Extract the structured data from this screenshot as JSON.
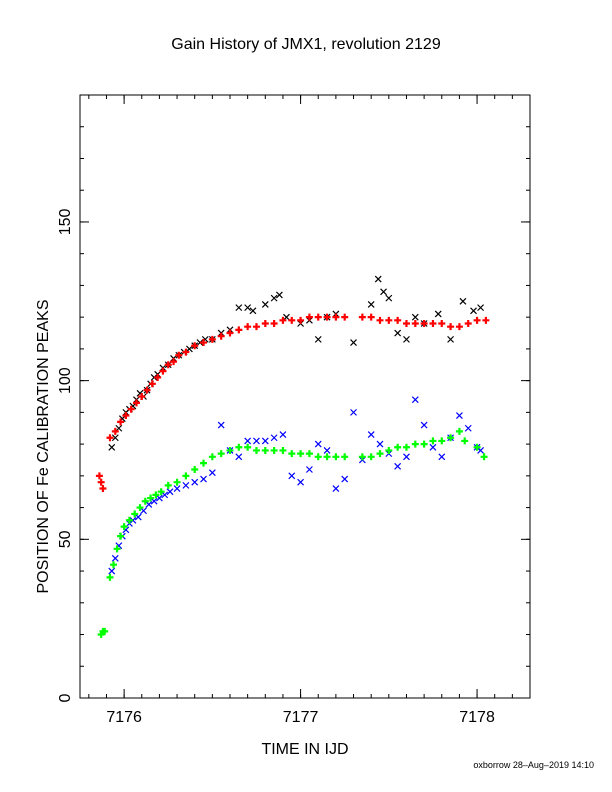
{
  "chart_data": {
    "type": "scatter",
    "title": "Gain History of JMX1, revolution 2129",
    "xlabel": "TIME IN IJD",
    "ylabel": "POSITION OF Fe CALIBRATION PEAKS",
    "xlim": [
      7175.75,
      7178.3
    ],
    "ylim": [
      0,
      190
    ],
    "xticks": [
      7176,
      7177,
      7178
    ],
    "yticks": [
      0,
      50,
      100,
      150
    ],
    "grid": false,
    "legend": "none",
    "series": [
      {
        "color": "#000000",
        "marker": "x",
        "points": [
          [
            7175.93,
            79
          ],
          [
            7175.95,
            82
          ],
          [
            7175.97,
            85
          ],
          [
            7175.99,
            88
          ],
          [
            7176.01,
            90
          ],
          [
            7176.03,
            91
          ],
          [
            7176.05,
            92
          ],
          [
            7176.07,
            94
          ],
          [
            7176.09,
            96
          ],
          [
            7176.11,
            95
          ],
          [
            7176.13,
            97
          ],
          [
            7176.15,
            99
          ],
          [
            7176.17,
            101
          ],
          [
            7176.19,
            102
          ],
          [
            7176.22,
            104
          ],
          [
            7176.25,
            105
          ],
          [
            7176.28,
            107
          ],
          [
            7176.31,
            108
          ],
          [
            7176.34,
            109
          ],
          [
            7176.37,
            110
          ],
          [
            7176.4,
            111
          ],
          [
            7176.43,
            112
          ],
          [
            7176.46,
            113
          ],
          [
            7176.5,
            113
          ],
          [
            7176.55,
            115
          ],
          [
            7176.6,
            116
          ],
          [
            7176.65,
            123
          ],
          [
            7176.7,
            123
          ],
          [
            7176.73,
            122
          ],
          [
            7176.8,
            124
          ],
          [
            7176.85,
            126
          ],
          [
            7176.88,
            127
          ],
          [
            7176.92,
            120
          ],
          [
            7177.0,
            118
          ],
          [
            7177.05,
            119
          ],
          [
            7177.1,
            113
          ],
          [
            7177.15,
            120
          ],
          [
            7177.2,
            121
          ],
          [
            7177.3,
            112
          ],
          [
            7177.4,
            124
          ],
          [
            7177.44,
            132
          ],
          [
            7177.47,
            128
          ],
          [
            7177.5,
            126
          ],
          [
            7177.55,
            115
          ],
          [
            7177.6,
            113
          ],
          [
            7177.65,
            120
          ],
          [
            7177.7,
            118
          ],
          [
            7177.78,
            121
          ],
          [
            7177.85,
            113
          ],
          [
            7177.92,
            125
          ],
          [
            7177.98,
            122
          ],
          [
            7178.02,
            123
          ]
        ]
      },
      {
        "color": "#ff0000",
        "marker": "+",
        "points": [
          [
            7175.86,
            70
          ],
          [
            7175.87,
            68
          ],
          [
            7175.88,
            66
          ],
          [
            7175.92,
            82
          ],
          [
            7175.95,
            84
          ],
          [
            7175.98,
            87
          ],
          [
            7176.01,
            89
          ],
          [
            7176.04,
            91
          ],
          [
            7176.07,
            93
          ],
          [
            7176.1,
            95
          ],
          [
            7176.13,
            97
          ],
          [
            7176.16,
            99
          ],
          [
            7176.19,
            101
          ],
          [
            7176.22,
            103
          ],
          [
            7176.25,
            105
          ],
          [
            7176.28,
            106
          ],
          [
            7176.31,
            108
          ],
          [
            7176.35,
            109
          ],
          [
            7176.4,
            111
          ],
          [
            7176.45,
            112
          ],
          [
            7176.5,
            113
          ],
          [
            7176.55,
            114
          ],
          [
            7176.6,
            115
          ],
          [
            7176.65,
            116
          ],
          [
            7176.7,
            117
          ],
          [
            7176.75,
            117
          ],
          [
            7176.8,
            118
          ],
          [
            7176.85,
            118
          ],
          [
            7176.9,
            119
          ],
          [
            7176.95,
            119
          ],
          [
            7177.0,
            119
          ],
          [
            7177.05,
            120
          ],
          [
            7177.1,
            120
          ],
          [
            7177.15,
            120
          ],
          [
            7177.2,
            120
          ],
          [
            7177.25,
            120
          ],
          [
            7177.35,
            120
          ],
          [
            7177.4,
            120
          ],
          [
            7177.45,
            119
          ],
          [
            7177.5,
            119
          ],
          [
            7177.55,
            119
          ],
          [
            7177.6,
            118
          ],
          [
            7177.65,
            118
          ],
          [
            7177.7,
            118
          ],
          [
            7177.75,
            118
          ],
          [
            7177.8,
            118
          ],
          [
            7177.85,
            117
          ],
          [
            7177.9,
            117
          ],
          [
            7177.95,
            118
          ],
          [
            7178.0,
            119
          ],
          [
            7178.05,
            119
          ]
        ]
      },
      {
        "color": "#0000ff",
        "marker": "x",
        "points": [
          [
            7175.93,
            40
          ],
          [
            7175.95,
            44
          ],
          [
            7175.97,
            48
          ],
          [
            7175.99,
            51
          ],
          [
            7176.01,
            53
          ],
          [
            7176.03,
            55
          ],
          [
            7176.05,
            56
          ],
          [
            7176.08,
            57
          ],
          [
            7176.11,
            59
          ],
          [
            7176.14,
            61
          ],
          [
            7176.17,
            62
          ],
          [
            7176.2,
            63
          ],
          [
            7176.23,
            64
          ],
          [
            7176.26,
            65
          ],
          [
            7176.3,
            66
          ],
          [
            7176.35,
            67
          ],
          [
            7176.4,
            68
          ],
          [
            7176.45,
            69
          ],
          [
            7176.5,
            71
          ],
          [
            7176.55,
            86
          ],
          [
            7176.6,
            78
          ],
          [
            7176.65,
            76
          ],
          [
            7176.7,
            81
          ],
          [
            7176.75,
            81
          ],
          [
            7176.8,
            81
          ],
          [
            7176.85,
            82
          ],
          [
            7176.9,
            83
          ],
          [
            7176.95,
            70
          ],
          [
            7177.0,
            68
          ],
          [
            7177.05,
            72
          ],
          [
            7177.1,
            80
          ],
          [
            7177.15,
            78
          ],
          [
            7177.2,
            66
          ],
          [
            7177.25,
            69
          ],
          [
            7177.3,
            90
          ],
          [
            7177.35,
            75
          ],
          [
            7177.4,
            83
          ],
          [
            7177.45,
            80
          ],
          [
            7177.5,
            77
          ],
          [
            7177.55,
            73
          ],
          [
            7177.6,
            76
          ],
          [
            7177.65,
            94
          ],
          [
            7177.7,
            86
          ],
          [
            7177.75,
            79
          ],
          [
            7177.8,
            76
          ],
          [
            7177.85,
            82
          ],
          [
            7177.9,
            89
          ],
          [
            7177.95,
            85
          ],
          [
            7178.0,
            79
          ],
          [
            7178.02,
            78
          ]
        ]
      },
      {
        "color": "#00ff00",
        "marker": "+",
        "points": [
          [
            7175.87,
            20
          ],
          [
            7175.88,
            21
          ],
          [
            7175.89,
            21
          ],
          [
            7175.92,
            38
          ],
          [
            7175.94,
            42
          ],
          [
            7175.96,
            47
          ],
          [
            7175.98,
            51
          ],
          [
            7176.0,
            54
          ],
          [
            7176.03,
            56
          ],
          [
            7176.06,
            58
          ],
          [
            7176.09,
            60
          ],
          [
            7176.12,
            62
          ],
          [
            7176.15,
            63
          ],
          [
            7176.18,
            64
          ],
          [
            7176.21,
            65
          ],
          [
            7176.25,
            67
          ],
          [
            7176.3,
            68
          ],
          [
            7176.35,
            70
          ],
          [
            7176.4,
            72
          ],
          [
            7176.45,
            74
          ],
          [
            7176.5,
            76
          ],
          [
            7176.55,
            77
          ],
          [
            7176.6,
            78
          ],
          [
            7176.65,
            79
          ],
          [
            7176.7,
            79
          ],
          [
            7176.75,
            78
          ],
          [
            7176.8,
            78
          ],
          [
            7176.85,
            78
          ],
          [
            7176.9,
            78
          ],
          [
            7176.95,
            77
          ],
          [
            7177.0,
            77
          ],
          [
            7177.05,
            77
          ],
          [
            7177.1,
            76
          ],
          [
            7177.15,
            76
          ],
          [
            7177.2,
            76
          ],
          [
            7177.25,
            76
          ],
          [
            7177.35,
            76
          ],
          [
            7177.4,
            76
          ],
          [
            7177.45,
            77
          ],
          [
            7177.5,
            78
          ],
          [
            7177.55,
            79
          ],
          [
            7177.6,
            79
          ],
          [
            7177.65,
            80
          ],
          [
            7177.7,
            80
          ],
          [
            7177.75,
            81
          ],
          [
            7177.8,
            81
          ],
          [
            7177.85,
            82
          ],
          [
            7177.9,
            84
          ],
          [
            7177.93,
            81
          ],
          [
            7178.0,
            79
          ],
          [
            7178.04,
            76
          ]
        ]
      }
    ]
  },
  "footer": {
    "credit": "oxborrow 28–Aug–2019 14:10"
  }
}
